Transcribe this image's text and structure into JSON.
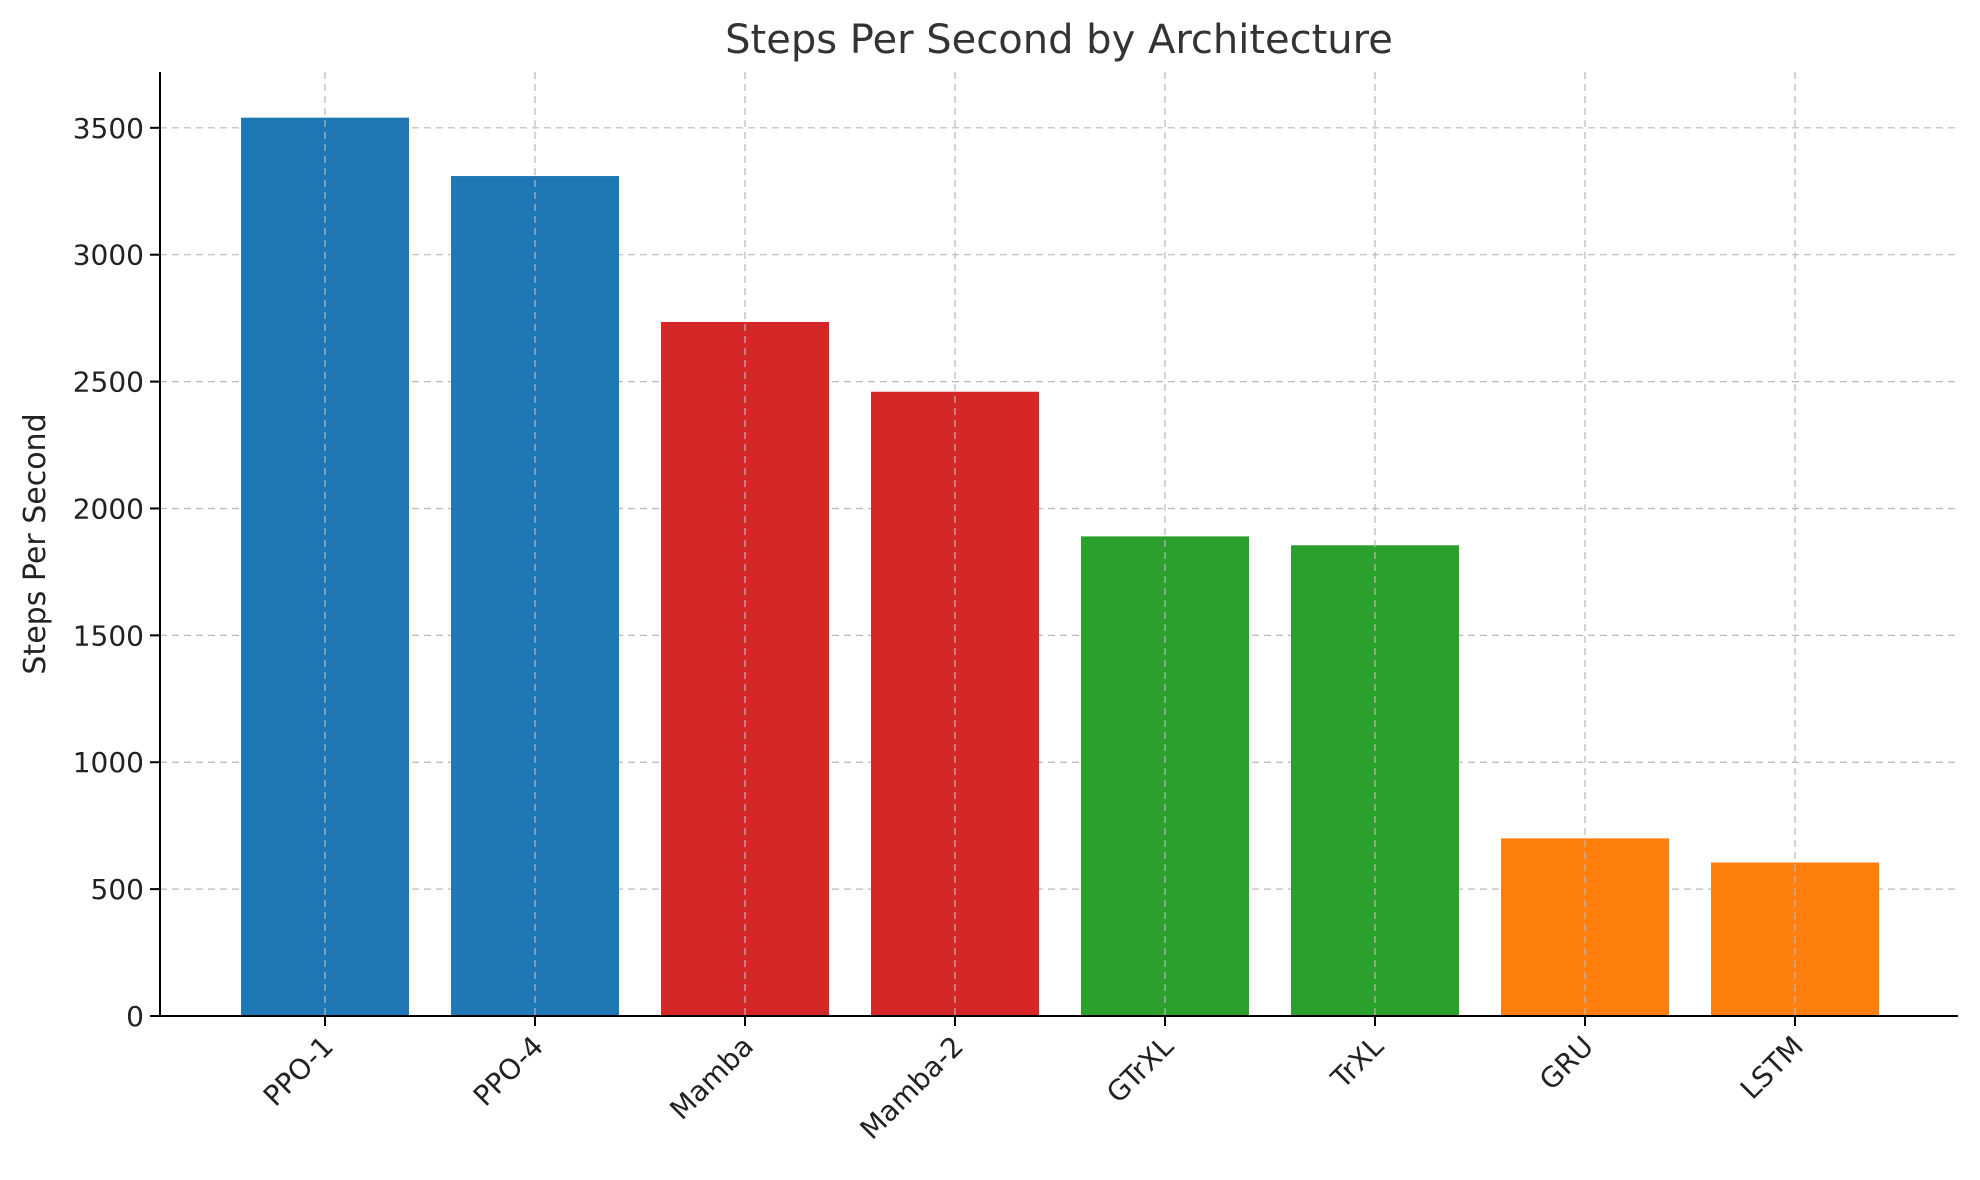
{
  "chart_data": {
    "type": "bar",
    "title": "Steps Per Second by Architecture",
    "xlabel": "",
    "ylabel": "Steps Per Second",
    "categories": [
      "PPO-1",
      "PPO-4",
      "Mamba",
      "Mamba-2",
      "GTrXL",
      "TrXL",
      "GRU",
      "LSTM"
    ],
    "values": [
      3540,
      3310,
      2735,
      2460,
      1890,
      1855,
      700,
      605
    ],
    "bar_colors": [
      "#1f77b4",
      "#1f77b4",
      "#d62728",
      "#d62728",
      "#2ca02c",
      "#2ca02c",
      "#ff7f0e",
      "#ff7f0e"
    ],
    "ylim": [
      0,
      3720
    ],
    "yticks": [
      0,
      500,
      1000,
      1500,
      2000,
      2500,
      3000,
      3500
    ],
    "grid": true,
    "legend": "none"
  }
}
